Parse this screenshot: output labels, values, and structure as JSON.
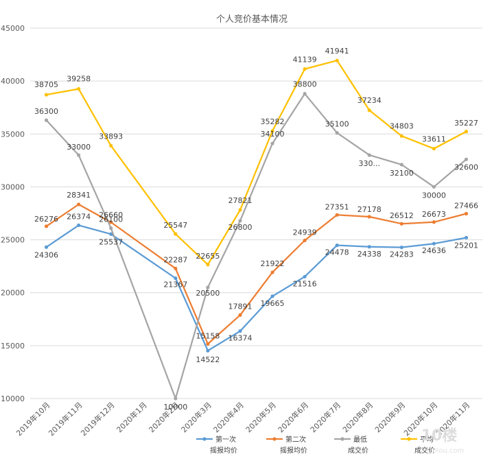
{
  "chart_data": {
    "type": "line",
    "title": "个人竞价基本情况",
    "categories": [
      "2019年10月",
      "2019年11月",
      "2019年12月",
      "2020年1月",
      "2020年2月",
      "2020年3月",
      "2020年4月",
      "2020年5月",
      "2020年6月",
      "2020年7月",
      "2020年8月",
      "2020年9月",
      "2020年10月",
      "2020年11月"
    ],
    "ylim": [
      10000,
      45000
    ],
    "yticks": [
      10000,
      15000,
      20000,
      25000,
      30000,
      35000,
      40000,
      45000
    ],
    "grid": true,
    "legend_position": "bottom",
    "series": [
      {
        "name": "第一次摇报均价",
        "color": "#5b9bd5",
        "values": [
          24306,
          26374,
          25537,
          null,
          21367,
          14522,
          16374,
          19665,
          21516,
          24478,
          24338,
          24283,
          24636,
          25201
        ],
        "labels": [
          "24306",
          "26374",
          "25537",
          "",
          "21367",
          "14522",
          "16374",
          "19665",
          "21516",
          "24478",
          "24338",
          "24283",
          "24636",
          "25201"
        ]
      },
      {
        "name": "第二次摇报均价",
        "color": "#ed7d31",
        "values": [
          26276,
          28341,
          26660,
          null,
          22287,
          15158,
          17891,
          21922,
          24939,
          27351,
          27178,
          26512,
          26673,
          27466
        ],
        "labels": [
          "26276",
          "28341",
          "26660",
          "",
          "22287",
          "15158",
          "17891",
          "21922",
          "24939",
          "27351",
          "27178",
          "26512",
          "26673",
          "27466"
        ]
      },
      {
        "name": "最低成交价",
        "color": "#a5a5a5",
        "values": [
          36300,
          33000,
          26100,
          null,
          10000,
          20500,
          26800,
          34100,
          38800,
          35100,
          33000,
          32100,
          30000,
          32600
        ],
        "labels": [
          "36300",
          "33000",
          "26100",
          "",
          "10000",
          "20500",
          "26800",
          "34100",
          "38800",
          "35100",
          "330...",
          "32100",
          "30000",
          "32600"
        ]
      },
      {
        "name": "平均成交价",
        "color": "#ffc000",
        "values": [
          38705,
          39258,
          33893,
          null,
          25547,
          22655,
          27821,
          35282,
          41139,
          41941,
          37234,
          34803,
          33611,
          35227
        ],
        "labels": [
          "38705",
          "39258",
          "33893",
          "",
          "25547",
          "22655",
          "27821",
          "35282",
          "41139",
          "41941",
          "37234",
          "34803",
          "33611",
          "35227"
        ]
      }
    ]
  },
  "legend": [
    {
      "line1": "第一次",
      "line2": "摇报均价",
      "color": "#5b9bd5"
    },
    {
      "line1": "第二次",
      "line2": "摇报均价",
      "color": "#ed7d31"
    },
    {
      "line1": "最低",
      "line2": "成交价",
      "color": "#a5a5a5"
    },
    {
      "line1": "平均",
      "line2": "成交价",
      "color": "#ffc000"
    }
  ],
  "watermark": {
    "logo": "10楼",
    "site": "10lou.com"
  }
}
